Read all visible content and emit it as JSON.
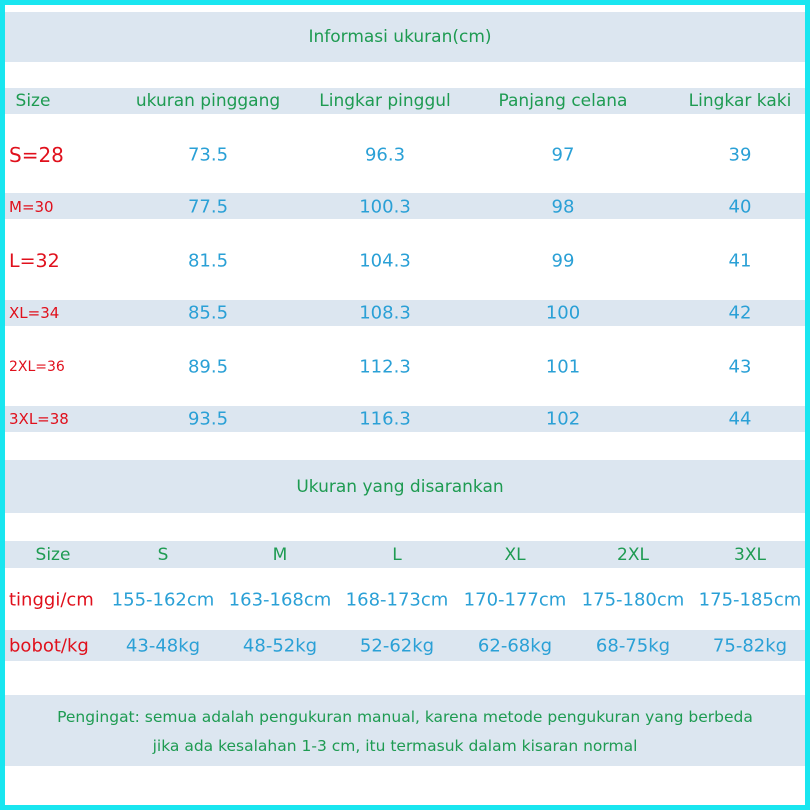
{
  "section1": {
    "title": "Informasi ukuran(cm)",
    "headers": [
      "Size",
      "ukuran pinggang",
      "Lingkar pinggul",
      "Panjang celana",
      "Lingkar kaki"
    ],
    "rows": [
      {
        "size": "S=28",
        "values": [
          "73.5",
          "96.3",
          "97",
          "39"
        ]
      },
      {
        "size": "M=30",
        "values": [
          "77.5",
          "100.3",
          "98",
          "40"
        ]
      },
      {
        "size": "L=32",
        "values": [
          "81.5",
          "104.3",
          "99",
          "41"
        ]
      },
      {
        "size": "XL=34",
        "values": [
          "85.5",
          "108.3",
          "100",
          "42"
        ]
      },
      {
        "size": "2XL=36",
        "values": [
          "89.5",
          "112.3",
          "101",
          "43"
        ]
      },
      {
        "size": "3XL=38",
        "values": [
          "93.5",
          "116.3",
          "102",
          "44"
        ]
      }
    ]
  },
  "section2": {
    "title": "Ukuran yang disarankan",
    "headers": [
      "Size",
      "S",
      "M",
      "L",
      "XL",
      "2XL",
      "3XL"
    ],
    "rows": [
      {
        "label": "tinggi/cm",
        "values": [
          "155-162cm",
          "163-168cm",
          "168-173cm",
          "170-177cm",
          "175-180cm",
          "175-185cm"
        ]
      },
      {
        "label": "bobot/kg",
        "values": [
          "43-48kg",
          "48-52kg",
          "52-62kg",
          "62-68kg",
          "68-75kg",
          "75-82kg"
        ]
      }
    ]
  },
  "note": {
    "line1": "Pengingat: semua adalah pengukuran manual, karena metode pengukuran yang berbeda",
    "line2": "jika ada kesalahan 1-3 cm, itu termasuk dalam kisaran normal"
  },
  "colors": {
    "border": "#19e6f0",
    "band": "#dce6f0",
    "header": "#1e9b52",
    "value": "#2aa0d6",
    "size_label": "#e0101c"
  }
}
